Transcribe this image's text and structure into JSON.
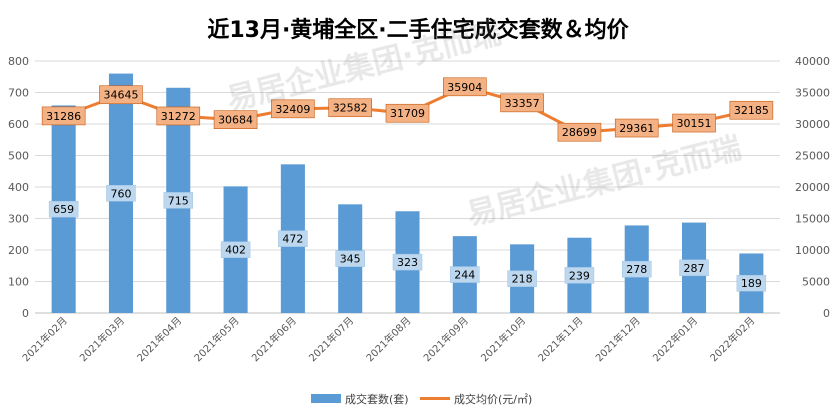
{
  "chart_data": {
    "type": "bar+line",
    "title": "近13月·黄埔全区·二手住宅成交套数＆均价",
    "categories": [
      "2021年02月",
      "2021年03月",
      "2021年04月",
      "2021年05月",
      "2021年06月",
      "2021年07月",
      "2021年08月",
      "2021年09月",
      "2021年10月",
      "2021年11月",
      "2021年12月",
      "2022年01月",
      "2022年02月"
    ],
    "series": [
      {
        "name": "成交套数(套)",
        "type": "bar",
        "axis": "left",
        "color": "#5b9bd5",
        "values": [
          659,
          760,
          715,
          402,
          472,
          345,
          323,
          244,
          218,
          239,
          278,
          287,
          189
        ]
      },
      {
        "name": "成交均价(元/㎡)",
        "type": "line",
        "axis": "right",
        "color": "#ed7d31",
        "values": [
          31286,
          34645,
          31272,
          30684,
          32409,
          32582,
          31709,
          35904,
          33357,
          28699,
          29361,
          30151,
          32185
        ]
      }
    ],
    "y_left": {
      "min": 0,
      "max": 800,
      "step": 100,
      "ticks": [
        "0",
        "100",
        "200",
        "300",
        "400",
        "500",
        "600",
        "700",
        "800"
      ]
    },
    "y_right": {
      "min": 0,
      "max": 40000,
      "step": 5000,
      "ticks": [
        "0",
        "5000",
        "10000",
        "15000",
        "20000",
        "25000",
        "30000",
        "35000",
        "40000"
      ]
    },
    "grid": true,
    "legend_position": "bottom",
    "bar_label_fill": "#bdd7ee",
    "line_label_fill": "#f4b183",
    "watermark_text": "易居企业集团·克而瑞"
  }
}
